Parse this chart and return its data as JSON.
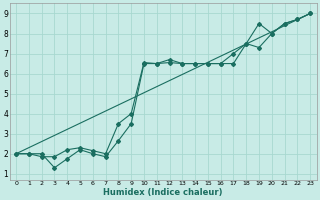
{
  "xlabel": "Humidex (Indice chaleur)",
  "xlim": [
    -0.5,
    23.5
  ],
  "ylim": [
    0.7,
    9.5
  ],
  "xticks": [
    0,
    1,
    2,
    3,
    4,
    5,
    6,
    7,
    8,
    9,
    10,
    11,
    12,
    13,
    14,
    15,
    16,
    17,
    18,
    19,
    20,
    21,
    22,
    23
  ],
  "yticks": [
    1,
    2,
    3,
    4,
    5,
    6,
    7,
    8,
    9
  ],
  "bg_color": "#c8ebe6",
  "grid_color": "#a8d8d0",
  "line_color": "#1a6e60",
  "line1_x": [
    0,
    1,
    2,
    3,
    4,
    5,
    6,
    7,
    8,
    9,
    10,
    11,
    12,
    13,
    14,
    15,
    16,
    17,
    18,
    19,
    20,
    21,
    22,
    23
  ],
  "line1_y": [
    2.0,
    2.0,
    2.0,
    1.3,
    1.75,
    2.2,
    2.0,
    1.85,
    2.65,
    3.5,
    6.5,
    6.5,
    6.7,
    6.5,
    6.5,
    6.5,
    6.5,
    6.5,
    7.5,
    8.5,
    8.0,
    8.5,
    8.7,
    9.0
  ],
  "line2_x": [
    0,
    1,
    2,
    3,
    4,
    5,
    6,
    7,
    8,
    9,
    10,
    11,
    12,
    13,
    14,
    15,
    16,
    17,
    18,
    19,
    20,
    21,
    22,
    23
  ],
  "line2_y": [
    2.0,
    2.0,
    1.85,
    1.85,
    2.2,
    2.3,
    2.15,
    2.0,
    3.5,
    4.0,
    6.55,
    6.5,
    6.55,
    6.5,
    6.5,
    6.5,
    6.5,
    7.0,
    7.5,
    7.3,
    8.0,
    8.5,
    8.7,
    9.0
  ],
  "line3_x": [
    0,
    23
  ],
  "line3_y": [
    2.0,
    9.0
  ],
  "figsize": [
    3.2,
    2.0
  ],
  "dpi": 100
}
